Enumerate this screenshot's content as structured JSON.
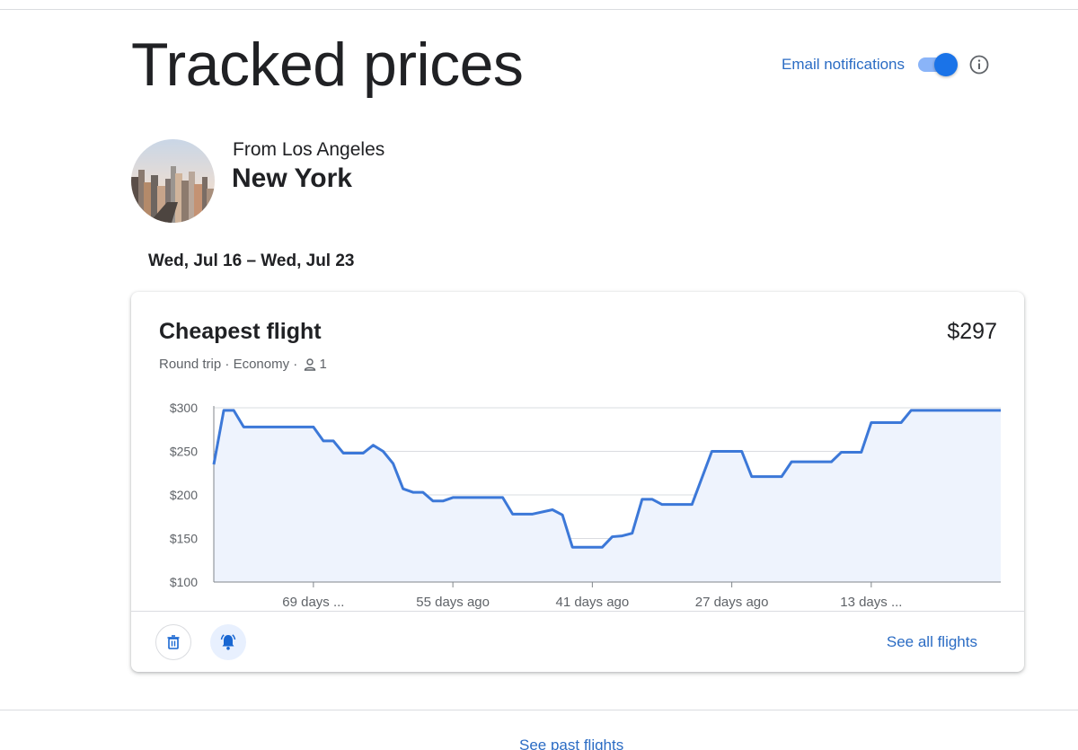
{
  "page": {
    "title": "Tracked prices",
    "email_notifications_label": "Email notifications",
    "email_notifications_on": true,
    "see_past_flights": "See past flights"
  },
  "trip": {
    "origin": "From Los Angeles",
    "destination": "New York",
    "dates": "Wed, Jul 16 – Wed, Jul 23"
  },
  "card": {
    "title": "Cheapest flight",
    "price": "$297",
    "trip_type": "Round trip",
    "cabin": "Economy",
    "passengers": "1",
    "see_all": "See all flights"
  },
  "colors": {
    "accent": "#2b6cc4",
    "line": "#3c78d8",
    "area": "#eef3fd"
  },
  "icons": [
    "info-icon",
    "person-icon",
    "trash-icon",
    "bell-icon"
  ],
  "chart_data": {
    "type": "area",
    "ylim": [
      100,
      300
    ],
    "y_ticks": [
      "$100",
      "$150",
      "$200",
      "$250",
      "$300"
    ],
    "x_ticks": [
      "69 days ...",
      "55 days ago",
      "41 days ago",
      "27 days ago",
      "13 days ..."
    ],
    "x_tick_days_ago": [
      69,
      55,
      41,
      27,
      13
    ],
    "x_days_ago": [
      79,
      78,
      77,
      76,
      75,
      73,
      71,
      69,
      68,
      67,
      66,
      64,
      63,
      62,
      61,
      60,
      59,
      58,
      57,
      56,
      55,
      54,
      52,
      50,
      49,
      47,
      45,
      44,
      43,
      42,
      41,
      40,
      39,
      38,
      37,
      36,
      35,
      34,
      33,
      32,
      31,
      29,
      28,
      27,
      26,
      25,
      23,
      22,
      21,
      19,
      17,
      16,
      14,
      13,
      12,
      10,
      9,
      8,
      7,
      5,
      3,
      1,
      0
    ],
    "y": [
      235,
      297,
      297,
      278,
      278,
      278,
      278,
      278,
      262,
      262,
      248,
      248,
      257,
      250,
      236,
      207,
      203,
      203,
      193,
      193,
      197,
      197,
      197,
      197,
      178,
      178,
      183,
      177,
      140,
      140,
      140,
      140,
      152,
      153,
      156,
      195,
      195,
      189,
      189,
      189,
      189,
      250,
      250,
      250,
      250,
      221,
      221,
      221,
      238,
      238,
      238,
      249,
      249,
      283,
      283,
      283,
      297,
      297,
      297,
      297,
      297,
      297,
      297
    ],
    "grid": true
  }
}
